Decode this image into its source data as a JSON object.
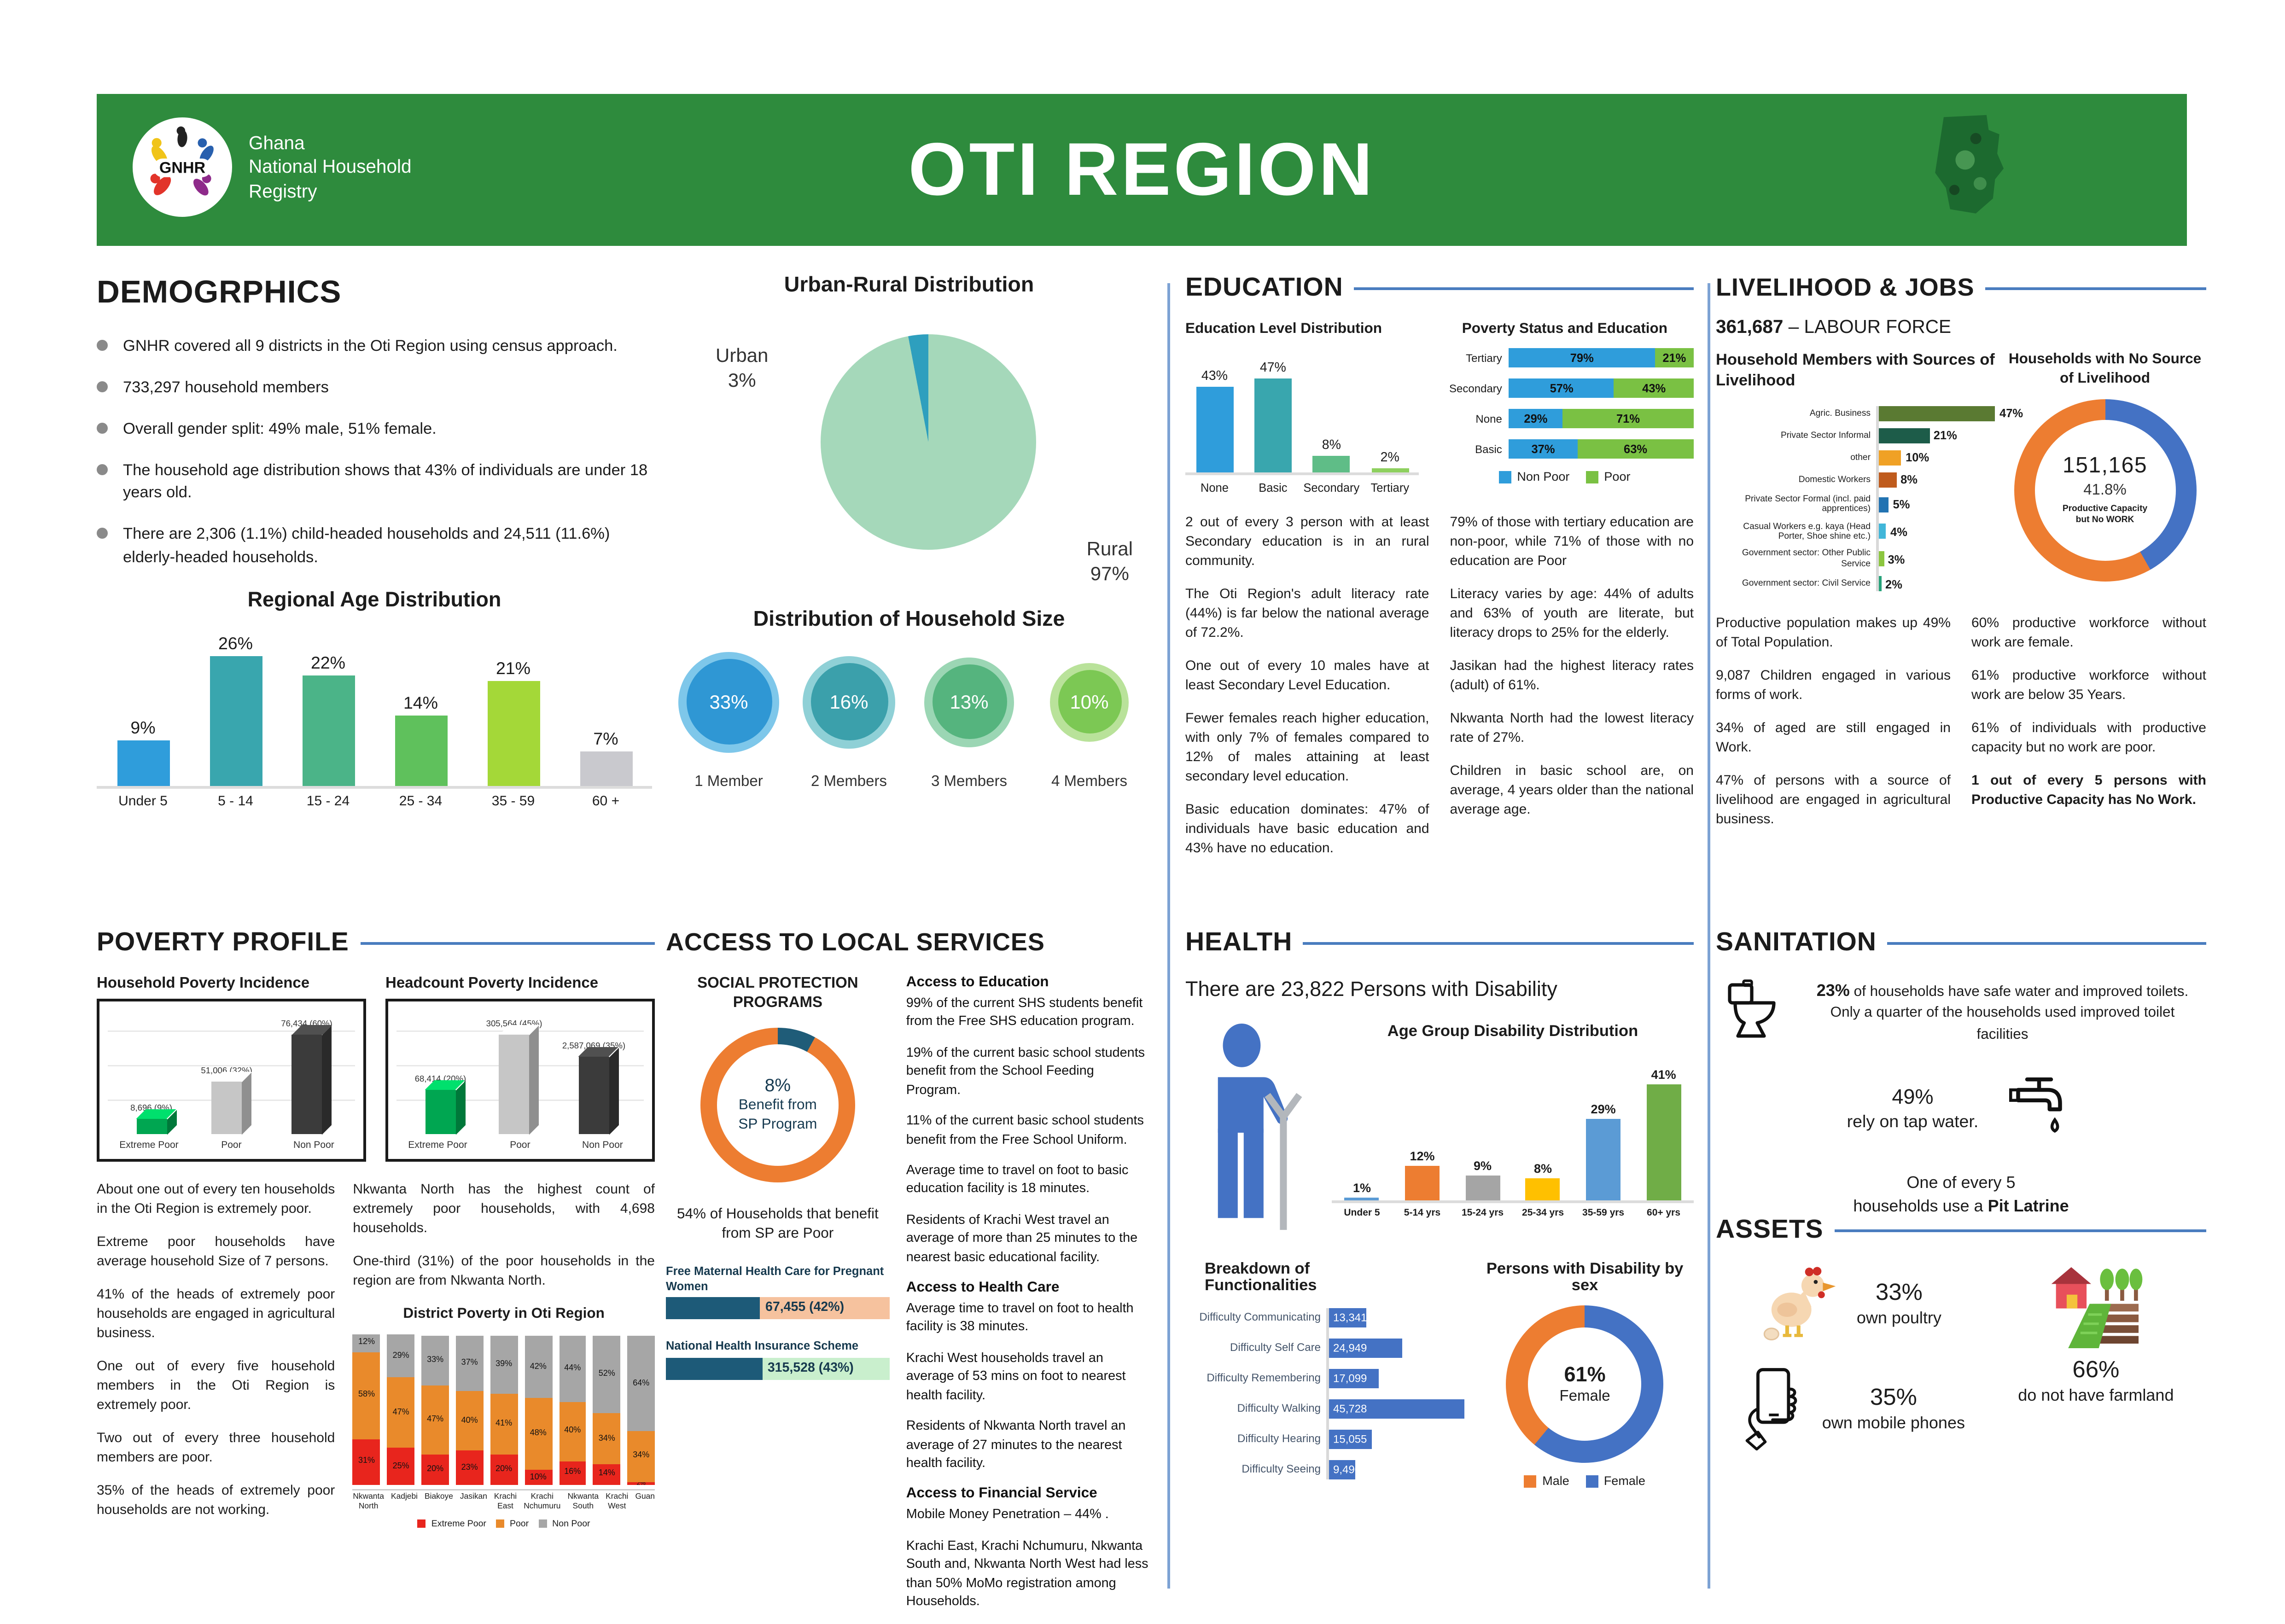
{
  "header": {
    "logo_text": "GNHR",
    "org_lines": [
      "Ghana",
      "National Household",
      "Registry"
    ],
    "title": "OTI REGION",
    "green": "#2e8b3d"
  },
  "demographics": {
    "title": "DEMOGRPHICS",
    "bullets": [
      "GNHR covered all 9 districts in the Oti Region using census approach.",
      "733,297 household members",
      "Overall gender split: 49% male, 51% female.",
      "The household age distribution shows that 43% of individuals are under 18 years old.",
      "There are 2,306 (1.1%) child-headed households and 24,511 (11.6%) elderly-headed households."
    ],
    "age_chart": {
      "type": "vbar",
      "title": "Regional Age Distribution",
      "categories": [
        "Under 5",
        "5 - 14",
        "15 - 24",
        "25 - 34",
        "35 - 59",
        "60 +"
      ],
      "values": [
        9,
        26,
        22,
        14,
        21,
        7
      ],
      "labels": [
        "9%",
        "26%",
        "22%",
        "14%",
        "21%",
        "7%"
      ],
      "colors": [
        "#2f9ddb",
        "#39a6ae",
        "#4bb488",
        "#5fc15c",
        "#a4d838",
        "#c9c9ce"
      ],
      "ymax": 26
    }
  },
  "urban_rural": {
    "type": "pie",
    "title": "Urban-Rural Distribution",
    "slices": [
      {
        "label": "Rural",
        "pct": 97,
        "color": "#a5d8ba"
      },
      {
        "label": "Urban",
        "pct": 3,
        "color": "#2e9fbe"
      }
    ],
    "urban_label": "Urban",
    "urban_pct": "3%",
    "rural_label": "Rural",
    "rural_pct": "97%"
  },
  "household_size": {
    "type": "circles",
    "title": "Distribution of Household Size",
    "items": [
      {
        "pct": "33%",
        "label": "1 Member",
        "inner": "#2f97d4",
        "outer": "#7ec7ea",
        "size": 62
      },
      {
        "pct": "16%",
        "label": "2 Members",
        "inner": "#3ba0ab",
        "outer": "#8fd0d6",
        "size": 56
      },
      {
        "pct": "13%",
        "label": "3 Members",
        "inner": "#55b47e",
        "outer": "#9bd6b4",
        "size": 54
      },
      {
        "pct": "10%",
        "label": "4 Members",
        "inner": "#7cc854",
        "outer": "#b9e29a",
        "size": 46
      }
    ]
  },
  "education": {
    "title": "EDUCATION",
    "level_chart": {
      "type": "vbar",
      "title": "Education Level Distribution",
      "categories": [
        "None",
        "Basic",
        "Secondary",
        "Tertiary"
      ],
      "values": [
        43,
        47,
        8,
        2
      ],
      "labels": [
        "43%",
        "47%",
        "8%",
        "2%"
      ],
      "colors": [
        "#2f9ddb",
        "#39a6ae",
        "#5fbd87",
        "#8ed05e"
      ],
      "ymax": 47
    },
    "poverty_chart": {
      "type": "hstack",
      "title": "Poverty Status and Education",
      "categories": [
        "Tertiary",
        "Secondary",
        "None",
        "Basic"
      ],
      "series": [
        {
          "name": "Non Poor",
          "color": "#2f9ddb",
          "values": [
            79,
            57,
            29,
            37
          ]
        },
        {
          "name": "Poor",
          "color": "#7ac143",
          "values": [
            21,
            43,
            71,
            63
          ]
        }
      ]
    },
    "col1": [
      "2 out of every 3 person with at least Secondary education is in an rural community.",
      "The Oti Region's adult literacy rate (44%) is far below the national average of 72.2%.",
      "One out of every 10 males have at least Secondary Level Education.",
      "Fewer females reach higher education, with only 7% of females compared to 12% of males attaining at least secondary level education.",
      "Basic education dominates: 47% of individuals have basic education and 43% have no education."
    ],
    "col2": [
      "79% of those with tertiary education are non-poor, while 71% of those with no education are Poor",
      "Literacy varies by age: 44% of adults and 63% of youth are literate, but literacy drops to 25% for the elderly.",
      "Jasikan had the highest literacy rates (adult) of 61%.",
      "Nkwanta North had the lowest literacy rate of 27%.",
      "Children in basic school are, on average, 4 years older than the national average age."
    ]
  },
  "livelihood": {
    "title": "LIVELIHOOD & JOBS",
    "labour_number": "361,687",
    "labour_label": " – LABOUR FORCE",
    "sources_chart": {
      "type": "hbar",
      "title": "Household Members with Sources of Livelihood",
      "max": 47,
      "rows": [
        {
          "label": "Agric. Business",
          "value": 47,
          "text": "47%",
          "color": "#5a7a32"
        },
        {
          "label": "Private Sector Informal",
          "value": 21,
          "text": "21%",
          "color": "#1d5c49"
        },
        {
          "label": "other",
          "value": 10,
          "text": "10%",
          "color": "#f0a125"
        },
        {
          "label": "Domestic Workers",
          "value": 8,
          "text": "8%",
          "color": "#bf5b1d"
        },
        {
          "label": "Private Sector Formal (incl. paid apprentices)",
          "value": 5,
          "text": "5%",
          "color": "#2273b2"
        },
        {
          "label": "Casual Workers e.g. kaya (Head Porter, Shoe shine etc.)",
          "value": 4,
          "text": "4%",
          "color": "#41b6d9"
        },
        {
          "label": "Government sector: Other Public Service",
          "value": 3,
          "text": "3%",
          "color": "#8cc63f"
        },
        {
          "label": "Government sector: Civil Service",
          "value": 2,
          "text": "2%",
          "color": "#27a27a"
        }
      ]
    },
    "no_work_donut": {
      "type": "donut",
      "title": "Households with No Source of Livelihood",
      "segments": [
        {
          "label": "Productive Capacity but No WORK",
          "pct": 41.8,
          "color": "#4472c4"
        },
        {
          "label": "Other",
          "pct": 58.2,
          "color": "#ed7d31"
        }
      ],
      "center": [
        "151,165",
        "41.8%",
        "Productive Capacity but No WORK"
      ]
    },
    "col1": [
      "Productive population makes up 49% of Total Population.",
      "9,087 Children engaged in various forms of work.",
      "34% of aged are still engaged in Work.",
      "47% of persons with a source of livelihood are engaged in agricultural business."
    ],
    "col2": [
      "60% productive workforce without work are female.",
      "61% productive workforce without work are below 35 Years.",
      "61% of individuals with productive capacity but no work are poor.",
      "1 out of every 5 persons with Productive Capacity has No Work."
    ]
  },
  "poverty": {
    "title": "POVERTY PROFILE",
    "household_chart": {
      "type": "bars3d",
      "title": "Household Poverty Incidence",
      "categories": [
        "Extreme Poor",
        "Poor",
        "Non Poor"
      ],
      "values": [
        9,
        32,
        60
      ],
      "labels": [
        "8,696 (9%)",
        "51,006 (32%)",
        "76,434 (60%)"
      ],
      "colors": [
        "#00a651",
        "#c6c6c6",
        "#3b3b3b"
      ],
      "max": 60
    },
    "headcount_chart": {
      "type": "bars3d",
      "title": "Headcount Poverty Incidence",
      "categories": [
        "Extreme Poor",
        "Poor",
        "Non Poor"
      ],
      "values": [
        20,
        45,
        35
      ],
      "labels": [
        "68,414 (20%)",
        "305,564 (45%)",
        "2,587,069 (35%)"
      ],
      "colors": [
        "#00a651",
        "#c6c6c6",
        "#3b3b3b"
      ],
      "max": 45
    },
    "col1": [
      "About one out of every ten households in the Oti Region is extremely poor.",
      "Extreme poor households have average household Size of 7 persons.",
      "41% of the heads of extremely poor households are engaged in agricultural business.",
      "One out of every five household members in the Oti Region is extremely poor.",
      "Two out of every three household members are poor.",
      "35% of the heads of extremely poor households are not working."
    ],
    "col2": [
      "Nkwanta North has the highest count of extremely poor households, with 4,698 households.",
      "One-third (31%) of the poor households in the region are from Nkwanta North."
    ],
    "district_chart": {
      "type": "stackcol",
      "title": "District Poverty in Oti Region",
      "categories": [
        "Nkwanta North",
        "Kadjebi",
        "Biakoye",
        "Jasikan",
        "Krachi East",
        "Krachi Nchumuru",
        "Nkwanta South",
        "Krachi West",
        "Guan"
      ],
      "series": [
        {
          "name": "Extreme Poor",
          "color": "#e8251d",
          "values": [
            31,
            25,
            20,
            23,
            20,
            10,
            16,
            14,
            2
          ]
        },
        {
          "name": "Poor",
          "color": "#e98a2b",
          "values": [
            58,
            47,
            47,
            40,
            41,
            48,
            40,
            34,
            34
          ]
        },
        {
          "name": "Non Poor",
          "color": "#a6a6a6",
          "values": [
            12,
            29,
            33,
            37,
            39,
            42,
            44,
            52,
            64
          ]
        }
      ]
    }
  },
  "services": {
    "title": "ACCESS TO LOCAL SERVICES",
    "sp_heading": "SOCIAL PROTECTION PROGRAMS",
    "sp_donut": {
      "type": "donut",
      "segments": [
        {
          "label": "Benefit from SP Program",
          "pct": 8,
          "color": "#1f5c78"
        },
        {
          "label": "Do not benefit",
          "pct": 92,
          "color": "#ed7d31"
        }
      ],
      "center": [
        "8%",
        "Benefit from",
        "SP Program"
      ]
    },
    "sp_note": "54% of Households that benefit from SP are Poor",
    "maternal": {
      "label": "Free Maternal Health Care for Pregnant Women",
      "value": "67,455 (42%)",
      "pct": 42,
      "fill": "#1d5a78",
      "track": "#f6c29e"
    },
    "nhis": {
      "label": "National Health Insurance Scheme",
      "value": "315,528 (43%)",
      "pct": 43,
      "fill": "#1d5a78",
      "track": "#c9efcd"
    },
    "edu_heading": "Access to Education",
    "edu_items": [
      "99% of the current SHS students benefit from the Free SHS education program.",
      "19% of the current basic school students benefit from the School Feeding Program.",
      "11% of the current basic school students benefit from the Free School Uniform.",
      "Average time to travel on foot to basic education facility is 18 minutes.",
      "Residents of Krachi West travel an average of more than 25 minutes to the nearest basic educational facility."
    ],
    "health_heading": "Access to Health Care",
    "health_items": [
      "Average time to travel on foot to health facility is 38 minutes.",
      "Krachi West households travel an average of 53 mins on foot to nearest health facility.",
      "Residents of Nkwanta North travel an average of 27 minutes to the nearest health facility."
    ],
    "fin_heading": "Access to Financial Service",
    "fin_items": [
      "Mobile Money Penetration – 44% .",
      "Krachi East, Krachi Nchumuru, Nkwanta South and, Nkwanta North West had less than 50% MoMo registration among Households."
    ]
  },
  "health": {
    "title": "HEALTH",
    "headline": "There are 23,822 Persons with Disability",
    "age_chart": {
      "type": "vbar",
      "title": "Age Group Disability Distribution",
      "categories": [
        "Under 5",
        "5-14 yrs",
        "15-24 yrs",
        "25-34 yrs",
        "35-59 yrs",
        "60+ yrs"
      ],
      "values": [
        1,
        12,
        9,
        8,
        29,
        41
      ],
      "labels": [
        "1%",
        "12%",
        "9%",
        "8%",
        "29%",
        "41%"
      ],
      "colors": [
        "#5b9bd5",
        "#ed7d31",
        "#a5a5a5",
        "#ffc000",
        "#5b9bd5",
        "#70ad47"
      ],
      "ymax": 41
    },
    "functional_chart": {
      "type": "hbar",
      "title": "Breakdown of Functionalities",
      "max": 45728,
      "inside": true,
      "color": "#4472c4",
      "rows": [
        {
          "label": "Difficulty Communicating",
          "value": 13341,
          "text": "13,341"
        },
        {
          "label": "Difficulty Self Care",
          "value": 24949,
          "text": "24,949"
        },
        {
          "label": "Difficulty Remembering",
          "value": 17099,
          "text": "17,099"
        },
        {
          "label": "Difficulty Walking",
          "value": 45728,
          "text": "45,728"
        },
        {
          "label": "Difficulty Hearing",
          "value": 15055,
          "text": "15,055"
        },
        {
          "label": "Difficulty Seeing",
          "value": 9490,
          "text": "9,490"
        }
      ]
    },
    "sex_donut": {
      "type": "donut",
      "title": "Persons with Disability by sex",
      "segments": [
        {
          "label": "Female",
          "pct": 61,
          "color": "#4472c4"
        },
        {
          "label": "Male",
          "pct": 39,
          "color": "#ed7d31"
        }
      ],
      "center": [
        "61%",
        "Female"
      ],
      "legend": [
        {
          "label": "Male",
          "color": "#ed7d31"
        },
        {
          "label": "Female",
          "color": "#4472c4"
        }
      ]
    }
  },
  "sanitation": {
    "title": "SANITATION",
    "water_pct": "23%",
    "water_text": " of households have safe water and improved toilets. Only a quarter of the households used improved toilet facilities",
    "tap_pct": "49%",
    "tap_text": "rely on tap water.",
    "pit_line1": "One of every 5",
    "pit_line2": "households use a ",
    "pit_bold": "Pit Latrine"
  },
  "assets": {
    "title": "ASSETS",
    "poultry_pct": "33%",
    "poultry_label": "own poultry",
    "farmland_pct": "66%",
    "farmland_label": "do not have farmland",
    "phones_pct": "35%",
    "phones_label": "own mobile phones"
  }
}
